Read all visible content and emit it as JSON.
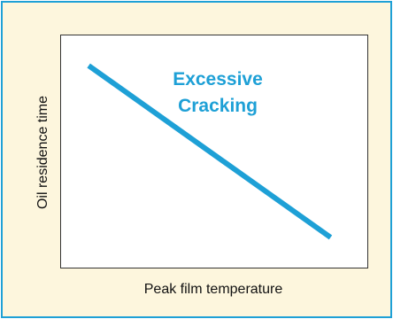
{
  "chart_data": {
    "type": "line",
    "title": "",
    "xlabel": "Peak film temperature",
    "ylabel": "Oil residence time",
    "xlim": [
      0,
      1
    ],
    "ylim": [
      0,
      1
    ],
    "grid": false,
    "series": [
      {
        "x": [
          0.09,
          0.88
        ],
        "y": [
          0.87,
          0.13
        ]
      }
    ],
    "annotations": [
      "Excessive",
      "Cracking"
    ],
    "colors": {
      "line": "#1ea0d6",
      "annotation": "#1ea0d6",
      "frame_border": "#1ea0d6",
      "frame_background": "#fdf6dd",
      "plot_background": "#ffffff"
    }
  }
}
